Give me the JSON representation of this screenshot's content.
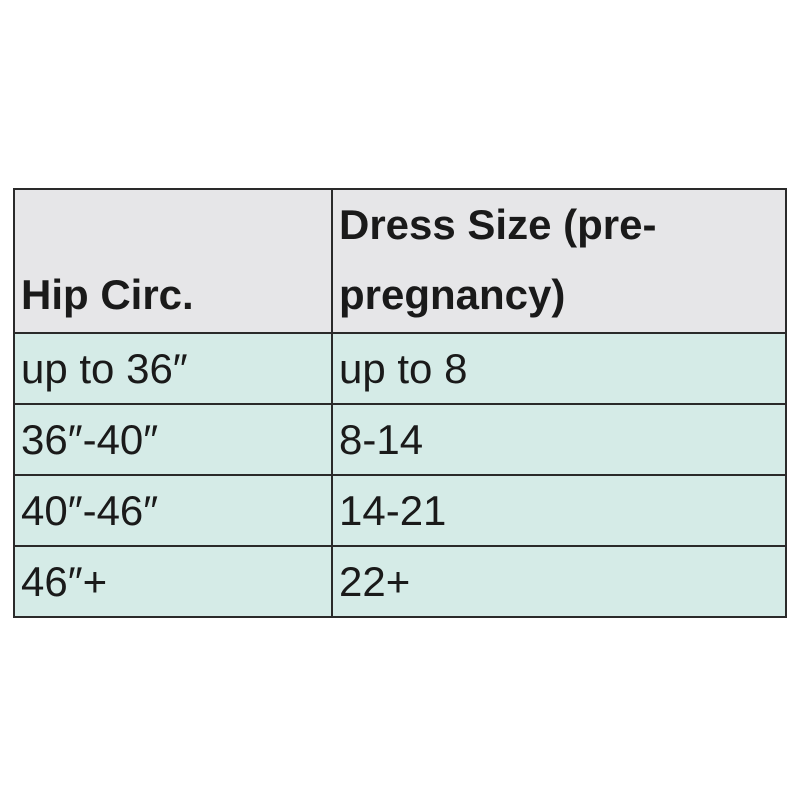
{
  "table": {
    "header": [
      "Hip Circ.",
      "Dress Size (pre-pregnancy)"
    ],
    "rows": [
      [
        "up to 36″",
        "up to 8"
      ],
      [
        "36″-40″",
        "8-14"
      ],
      [
        "40″-46″",
        "14-21"
      ],
      [
        "46″+",
        "22+"
      ]
    ]
  }
}
